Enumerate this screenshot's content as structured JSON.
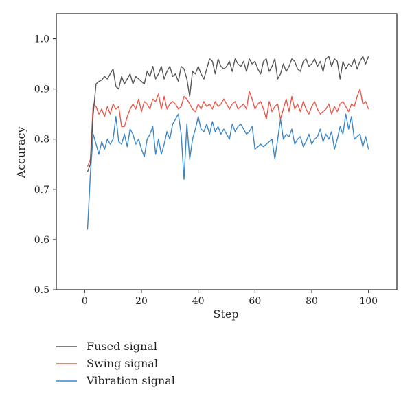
{
  "chart_data": {
    "type": "line",
    "xlabel": "Step",
    "ylabel": "Accuracy",
    "xlim": [
      -10,
      110
    ],
    "ylim": [
      0.5,
      1.05
    ],
    "xticks": [
      "0",
      "20",
      "40",
      "60",
      "80",
      "100"
    ],
    "xtick_values": [
      0,
      20,
      40,
      60,
      80,
      100
    ],
    "yticks": [
      "0.5",
      "0.6",
      "0.7",
      "0.8",
      "0.9",
      "1.0"
    ],
    "ytick_values": [
      0.5,
      0.6,
      0.7,
      0.8,
      0.9,
      1.0
    ],
    "grid": false,
    "legend_position": "bottom",
    "series": [
      {
        "name": "Fused signal",
        "color": "#555555",
        "x": [
          1,
          2,
          3,
          4,
          5,
          6,
          7,
          8,
          9,
          10,
          11,
          12,
          13,
          14,
          15,
          16,
          17,
          18,
          19,
          20,
          21,
          22,
          23,
          24,
          25,
          26,
          27,
          28,
          29,
          30,
          31,
          32,
          33,
          34,
          35,
          36,
          37,
          38,
          39,
          40,
          41,
          42,
          43,
          44,
          45,
          46,
          47,
          48,
          49,
          50,
          51,
          52,
          53,
          54,
          55,
          56,
          57,
          58,
          59,
          60,
          61,
          62,
          63,
          64,
          65,
          66,
          67,
          68,
          69,
          70,
          71,
          72,
          73,
          74,
          75,
          76,
          77,
          78,
          79,
          80,
          81,
          82,
          83,
          84,
          85,
          86,
          87,
          88,
          89,
          90,
          91,
          92,
          93,
          94,
          95,
          96,
          97,
          98,
          99,
          100
        ],
        "y": [
          0.735,
          0.75,
          0.85,
          0.91,
          0.915,
          0.918,
          0.925,
          0.92,
          0.93,
          0.94,
          0.905,
          0.9,
          0.925,
          0.91,
          0.92,
          0.93,
          0.91,
          0.925,
          0.92,
          0.915,
          0.91,
          0.935,
          0.925,
          0.945,
          0.92,
          0.93,
          0.945,
          0.92,
          0.935,
          0.945,
          0.925,
          0.93,
          0.915,
          0.945,
          0.94,
          0.92,
          0.885,
          0.935,
          0.93,
          0.945,
          0.93,
          0.92,
          0.94,
          0.96,
          0.955,
          0.93,
          0.96,
          0.945,
          0.94,
          0.945,
          0.955,
          0.935,
          0.96,
          0.95,
          0.945,
          0.955,
          0.935,
          0.96,
          0.95,
          0.955,
          0.94,
          0.93,
          0.955,
          0.96,
          0.935,
          0.945,
          0.96,
          0.92,
          0.93,
          0.95,
          0.935,
          0.945,
          0.96,
          0.955,
          0.94,
          0.935,
          0.955,
          0.96,
          0.945,
          0.95,
          0.96,
          0.945,
          0.955,
          0.935,
          0.96,
          0.965,
          0.945,
          0.96,
          0.955,
          0.92,
          0.955,
          0.94,
          0.95,
          0.945,
          0.96,
          0.94,
          0.955,
          0.965,
          0.95,
          0.965
        ]
      },
      {
        "name": "Swing signal",
        "color": "#e8584a",
        "x": [
          1,
          2,
          3,
          4,
          5,
          6,
          7,
          8,
          9,
          10,
          11,
          12,
          13,
          14,
          15,
          16,
          17,
          18,
          19,
          20,
          21,
          22,
          23,
          24,
          25,
          26,
          27,
          28,
          29,
          30,
          31,
          32,
          33,
          34,
          35,
          36,
          37,
          38,
          39,
          40,
          41,
          42,
          43,
          44,
          45,
          46,
          47,
          48,
          49,
          50,
          51,
          52,
          53,
          54,
          55,
          56,
          57,
          58,
          59,
          60,
          61,
          62,
          63,
          64,
          65,
          66,
          67,
          68,
          69,
          70,
          71,
          72,
          73,
          74,
          75,
          76,
          77,
          78,
          79,
          80,
          81,
          82,
          83,
          84,
          85,
          86,
          87,
          88,
          89,
          90,
          91,
          92,
          93,
          94,
          95,
          96,
          97,
          98,
          99,
          100
        ],
        "y": [
          0.745,
          0.76,
          0.87,
          0.865,
          0.85,
          0.86,
          0.845,
          0.865,
          0.85,
          0.87,
          0.86,
          0.865,
          0.825,
          0.825,
          0.845,
          0.86,
          0.87,
          0.86,
          0.88,
          0.855,
          0.875,
          0.87,
          0.86,
          0.88,
          0.875,
          0.89,
          0.86,
          0.885,
          0.86,
          0.87,
          0.875,
          0.87,
          0.86,
          0.865,
          0.885,
          0.88,
          0.87,
          0.86,
          0.855,
          0.87,
          0.86,
          0.875,
          0.865,
          0.87,
          0.86,
          0.875,
          0.865,
          0.87,
          0.88,
          0.87,
          0.86,
          0.87,
          0.875,
          0.86,
          0.865,
          0.87,
          0.86,
          0.895,
          0.88,
          0.86,
          0.87,
          0.875,
          0.86,
          0.84,
          0.875,
          0.855,
          0.865,
          0.87,
          0.84,
          0.86,
          0.88,
          0.855,
          0.885,
          0.86,
          0.87,
          0.855,
          0.875,
          0.86,
          0.85,
          0.865,
          0.875,
          0.86,
          0.85,
          0.855,
          0.86,
          0.87,
          0.85,
          0.865,
          0.855,
          0.87,
          0.875,
          0.865,
          0.855,
          0.87,
          0.865,
          0.885,
          0.9,
          0.87,
          0.875,
          0.86
        ]
      },
      {
        "name": "Vibration signal",
        "color": "#3b86c8",
        "x": [
          1,
          2,
          3,
          4,
          5,
          6,
          7,
          8,
          9,
          10,
          11,
          12,
          13,
          14,
          15,
          16,
          17,
          18,
          19,
          20,
          21,
          22,
          23,
          24,
          25,
          26,
          27,
          28,
          29,
          30,
          31,
          32,
          33,
          34,
          35,
          36,
          37,
          38,
          39,
          40,
          41,
          42,
          43,
          44,
          45,
          46,
          47,
          48,
          49,
          50,
          51,
          52,
          53,
          54,
          55,
          56,
          57,
          58,
          59,
          60,
          61,
          62,
          63,
          64,
          65,
          66,
          67,
          68,
          69,
          70,
          71,
          72,
          73,
          74,
          75,
          76,
          77,
          78,
          79,
          80,
          81,
          82,
          83,
          84,
          85,
          86,
          87,
          88,
          89,
          90,
          91,
          92,
          93,
          94,
          95,
          96,
          97,
          98,
          99,
          100
        ],
        "y": [
          0.62,
          0.73,
          0.81,
          0.79,
          0.77,
          0.795,
          0.78,
          0.8,
          0.79,
          0.8,
          0.845,
          0.795,
          0.79,
          0.81,
          0.785,
          0.82,
          0.81,
          0.79,
          0.8,
          0.78,
          0.765,
          0.8,
          0.81,
          0.825,
          0.77,
          0.8,
          0.77,
          0.79,
          0.815,
          0.8,
          0.83,
          0.84,
          0.85,
          0.81,
          0.72,
          0.83,
          0.76,
          0.8,
          0.82,
          0.845,
          0.82,
          0.815,
          0.83,
          0.81,
          0.835,
          0.815,
          0.825,
          0.81,
          0.82,
          0.81,
          0.8,
          0.83,
          0.815,
          0.825,
          0.83,
          0.82,
          0.81,
          0.815,
          0.825,
          0.78,
          0.785,
          0.79,
          0.785,
          0.79,
          0.795,
          0.8,
          0.76,
          0.8,
          0.84,
          0.8,
          0.81,
          0.805,
          0.82,
          0.79,
          0.8,
          0.805,
          0.785,
          0.795,
          0.81,
          0.79,
          0.8,
          0.805,
          0.82,
          0.795,
          0.81,
          0.8,
          0.815,
          0.78,
          0.8,
          0.825,
          0.81,
          0.85,
          0.82,
          0.845,
          0.8,
          0.805,
          0.81,
          0.785,
          0.805,
          0.78
        ]
      }
    ]
  }
}
